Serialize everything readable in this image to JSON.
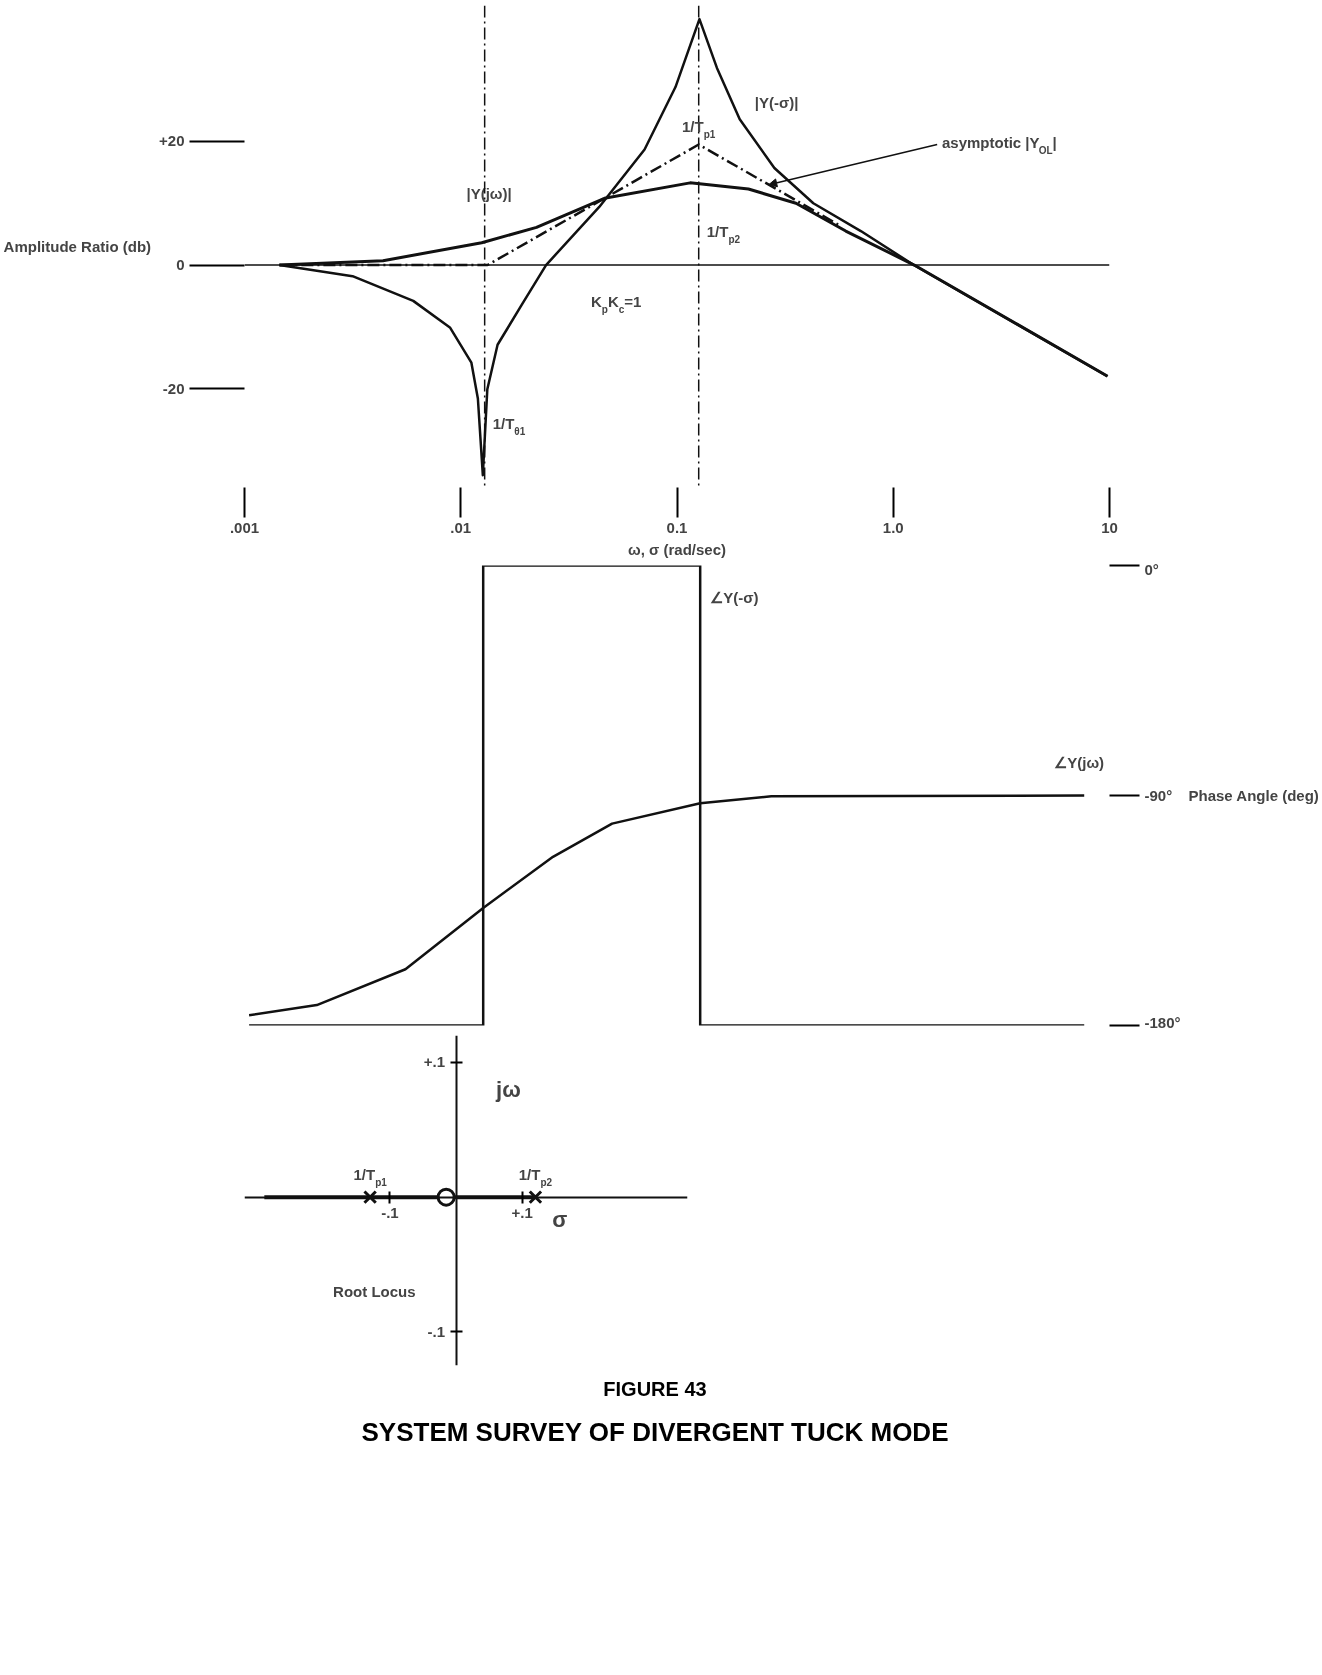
{
  "chart_data": [
    {
      "type": "line",
      "xlabel": "ω, σ (rad/sec)",
      "ylabel": "Amplitude Ratio (db)",
      "log": "x",
      "xlim": [
        0.001,
        10
      ],
      "ylim": [
        -36,
        42
      ],
      "xticks": [
        {
          "value": 0.001,
          "label": ".001"
        },
        {
          "value": 0.01,
          "label": ".01"
        },
        0.1,
        {
          "value": 1,
          "label": "1.0"
        },
        10
      ],
      "yticks": [
        {
          "value": 20,
          "label": "+20"
        },
        0,
        -20
      ],
      "series": [
        {
          "name": "|Y(jω)|",
          "color": "#111111",
          "x": [
            0.00145,
            0.00437,
            0.0125,
            0.0224,
            0.0462,
            0.115,
            0.214,
            0.355,
            0.603,
            1.25,
            9.8
          ],
          "values": [
            0,
            0.7,
            3.6,
            6.1,
            10.8,
            13.3,
            12.3,
            10.0,
            5.5,
            0,
            -18
          ]
        },
        {
          "name": "|Y(-σ)|",
          "color": "#111111",
          "x": [
            0.00145,
            0.00316,
            0.00603,
            0.00891,
            0.0112,
            0.012,
            0.01265,
            0.01327,
            0.0148,
            0.0191,
            0.0248,
            0.0437,
            0.0708,
            0.0984,
            0.127,
            0.153,
            0.195,
            0.282,
            0.427,
            0.708,
            1.245,
            9.77
          ],
          "values": [
            0,
            -1.8,
            -5.8,
            -10.1,
            -15.8,
            -21.6,
            -34,
            -20.1,
            -12.9,
            -6.5,
            0,
            9.4,
            18.7,
            28.8,
            39.8,
            31.9,
            23.6,
            15.7,
            10.0,
            5.5,
            0,
            -18
          ]
        },
        {
          "name": "asymptotic |Y$_{OL}$|",
          "color": "#111111",
          "line_style": "dashed",
          "x": [
            0.00145,
            0.0133,
            0.126,
            0.56
          ],
          "values": [
            0,
            0,
            19.5,
            6.5
          ]
        }
      ],
      "ref_lines": [
        {
          "axis": "y",
          "value": 0
        },
        {
          "axis": "x",
          "value": 0.0129,
          "line_style": "dashed"
        },
        {
          "axis": "x",
          "value": 0.126,
          "line_style": "dashed"
        }
      ],
      "annotations": [
        {
          "text": "K$_{p}$K$_{c}$=1",
          "x": 0.04,
          "y": 0
        },
        {
          "text": "1/T$_{θ1}$",
          "x": 0.0129,
          "y": -26
        },
        {
          "text": "1/T$_{p1}$",
          "x": 0.126,
          "y": 22
        },
        {
          "text": "1/T$_{p2}$",
          "x": 0.126,
          "y": 5
        }
      ]
    },
    {
      "type": "line",
      "ylabel": "Phase Angle (deg)",
      "log": "x",
      "xlim": [
        0.001,
        10
      ],
      "ylim": [
        -180,
        0
      ],
      "tick_labels": "y",
      "yticks": [
        {
          "value": 0,
          "label": "0°"
        },
        {
          "value": -90,
          "label": "-90°"
        },
        {
          "value": -180,
          "label": "-180°"
        }
      ],
      "series": [
        {
          "name": "∠Y(-σ)",
          "color": "#111111",
          "x": [
            0.00105,
            0.0127,
            0.0127,
            0.128,
            0.128,
            7.64
          ],
          "values": [
            -180,
            -180,
            0,
            0,
            -180,
            -180
          ]
        },
        {
          "name": "∠Y(jω)",
          "color": "#111111",
          "x": [
            0.00105,
            0.00216,
            0.00555,
            0.0127,
            0.0267,
            0.0501,
            0.128,
            0.273,
            7.64
          ],
          "values": [
            -176,
            -172,
            -158,
            -134,
            -114,
            -101,
            -93,
            -90.3,
            -90
          ]
        }
      ]
    },
    {
      "type": "scatter",
      "xlabel": "σ",
      "ylabel": "jω",
      "xlim": [
        -0.32,
        0.35
      ],
      "ylim": [
        -0.125,
        0.12
      ],
      "xticks": [
        {
          "value": -0.1,
          "label": "-.1"
        },
        {
          "value": 0.1,
          "label": "+.1"
        }
      ],
      "yticks": [
        {
          "value": 0.1,
          "label": "+.1"
        },
        {
          "value": -0.1,
          "label": "-.1"
        }
      ],
      "series": [
        {
          "type": "line",
          "color": "#111111",
          "x": [
            -0.29,
            0.12
          ],
          "values": [
            0,
            0
          ]
        },
        {
          "color": "#111111",
          "marker": "cross",
          "x": [
            -0.13,
            0.12
          ],
          "values": [
            0,
            0
          ]
        },
        {
          "color": "#111111",
          "marker": "circle",
          "x": [
            -0.015
          ],
          "values": [
            0
          ]
        }
      ],
      "annotations": [
        "Root Locus",
        {
          "text": "1/T$_{p1}$",
          "x": -0.13,
          "y": 0
        },
        {
          "text": "1/T$_{p2}$",
          "x": 0.12,
          "y": 0
        },
        "FIGURE 43",
        "SYSTEM SURVEY OF DIVERGENT TUCK MODE"
      ]
    }
  ]
}
